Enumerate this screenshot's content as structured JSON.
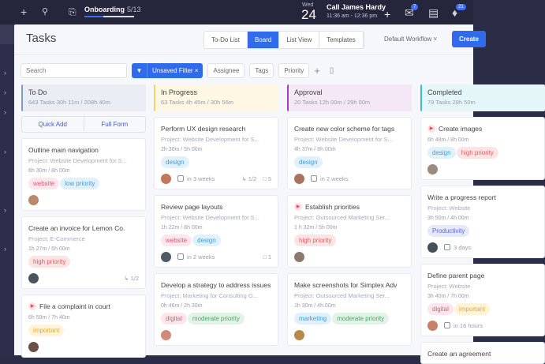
{
  "topbar": {
    "onboarding": {
      "label": "Onboarding",
      "progress_text": "5/13",
      "progress": 0.385
    },
    "calendar": {
      "weekday": "Wed",
      "day": "24",
      "event_title": "Call James Hardy",
      "event_time": "11:36 am - 12:36 pm"
    },
    "badges": {
      "inbox": "7",
      "notifications": "21"
    },
    "icons": [
      "plus-icon",
      "search-icon",
      "onboarding-icon",
      "plus-icon",
      "inbox-icon",
      "notes-icon",
      "bell-icon"
    ]
  },
  "header": {
    "title": "Tasks",
    "views": [
      {
        "label": "To-Do List",
        "active": false
      },
      {
        "label": "Board",
        "active": true
      },
      {
        "label": "List View",
        "active": false
      },
      {
        "label": "Templates",
        "active": false
      }
    ],
    "workflow": "Default Workflow",
    "create": "Create"
  },
  "filters": {
    "search_placeholder": "Search",
    "unsaved": "Unsaved Filter",
    "assignee": "Assignee",
    "tags": "Tags",
    "priority": "Priority"
  },
  "colors": {
    "accent": "#2f6bea",
    "topbar": "#25263b"
  },
  "columns": [
    {
      "name": "To Do",
      "meta": "643 Tasks   30h 11m / 208h 40m",
      "color": "#7a9cc6",
      "bg": "#eaeef4",
      "quick_add": "Quick Add",
      "full_form": "Full Form",
      "cards": [
        {
          "title": "Outline main navigation",
          "project": "Project: Website Development for S...",
          "time": "6h 30m  / 8h 00m",
          "tags": [
            {
              "label": "website",
              "c": "pink"
            },
            {
              "label": "low priority",
              "c": "blue"
            }
          ],
          "avatar": "#b98a6a"
        },
        {
          "title": "Create an invoice for Lemon Co.",
          "project": "Project: E-Commerce",
          "time": "1h 27m / 6h 00m",
          "tags": [
            {
              "label": "high priority",
              "c": "red"
            }
          ],
          "avatar": "#4a5560",
          "subtasks": "1/2"
        },
        {
          "title": "File a complaint in court",
          "flag": true,
          "time": "6h 59m / 7h 40m",
          "tags": [
            {
              "label": "important",
              "c": "yellow"
            }
          ],
          "avatar": "#6b4f48"
        }
      ]
    },
    {
      "name": "In Progress",
      "meta": "63 Tasks   4h 45m / 30h 56m",
      "color": "#f1d36b",
      "bg": "#fdf7e3",
      "cards": [
        {
          "title": "Perform UX design research",
          "project": "Project: Website Development for S...",
          "time": "2h 30m / 5h 00m",
          "tags": [
            {
              "label": "design",
              "c": "blue"
            }
          ],
          "avatar": "#c0785a",
          "due": "in 3 weeks",
          "subtasks": "1/2",
          "comments": "5"
        },
        {
          "title": "Review page layouts",
          "project": "Project: Website Development for S...",
          "time": "1h 22m / 8h 00m",
          "tags": [
            {
              "label": "website",
              "c": "pink"
            },
            {
              "label": "design",
              "c": "blue"
            }
          ],
          "avatar": "#4e5c66",
          "due": "in 2 weeks",
          "comments": "1"
        },
        {
          "title": "Develop a strategy to address issues",
          "project": "Project: Marketing for Consulting G...",
          "time": "0h 46m / 2h 30m",
          "tags": [
            {
              "label": "digital",
              "c": "pink"
            },
            {
              "label": "moderate priority",
              "c": "green"
            }
          ],
          "avatar": "#d08a78"
        }
      ]
    },
    {
      "name": "Approval",
      "meta": "20 Tasks   12h 00m / 29h 00m",
      "color": "#a93bc0",
      "bg": "#f4e8f6",
      "cards": [
        {
          "title": "Create new color scheme for tags",
          "project": "Project: Website Development for S...",
          "time": "4h 37m / 8h 00m",
          "tags": [
            {
              "label": "design",
              "c": "blue"
            }
          ],
          "avatar": "#a9735c",
          "due": "in 2 weeks"
        },
        {
          "title": "Establish priorities",
          "flag": true,
          "project": "Project: Outsourced Marketing Ser...",
          "time": "1 h 32m / 5h 00m",
          "tags": [
            {
              "label": "high priority",
              "c": "red"
            }
          ],
          "avatar": "#8c7a70"
        },
        {
          "title": "Make screenshots for Simplex Adv",
          "project": "Project: Outsourced Marketing Ser...",
          "time": "1h 30m / 4h 00m",
          "tags": [
            {
              "label": "marketing",
              "c": "blue"
            },
            {
              "label": "moderate priority",
              "c": "green"
            }
          ],
          "avatar": "#b8894a"
        }
      ]
    },
    {
      "name": "Completed",
      "meta": "79 Tasks   28h 50m",
      "color": "#3bbfc8",
      "bg": "#e4f6f8",
      "cards": [
        {
          "title": "Create images",
          "flag": true,
          "time": "6h 48m / 8h 00m",
          "tags": [
            {
              "label": "design",
              "c": "blue"
            },
            {
              "label": "high priority",
              "c": "red"
            }
          ],
          "avatar": "#9a8a80"
        },
        {
          "title": "Write a progress report",
          "project": "Project: Website",
          "time": "3h 50m  / 4h 00m",
          "tags": [
            {
              "label": "Productivity",
              "c": "purple"
            }
          ],
          "avatar": "#45505a",
          "due": "3 days"
        },
        {
          "title": "Define parent page",
          "project": "Project: Website",
          "time": "3h 40m / 7h 00m",
          "tags": [
            {
              "label": "digital",
              "c": "pink"
            },
            {
              "label": "important",
              "c": "yellow"
            }
          ],
          "avatar": "#c9806a",
          "due": "in 16 hours"
        },
        {
          "title": "Create an agreement"
        }
      ]
    }
  ]
}
